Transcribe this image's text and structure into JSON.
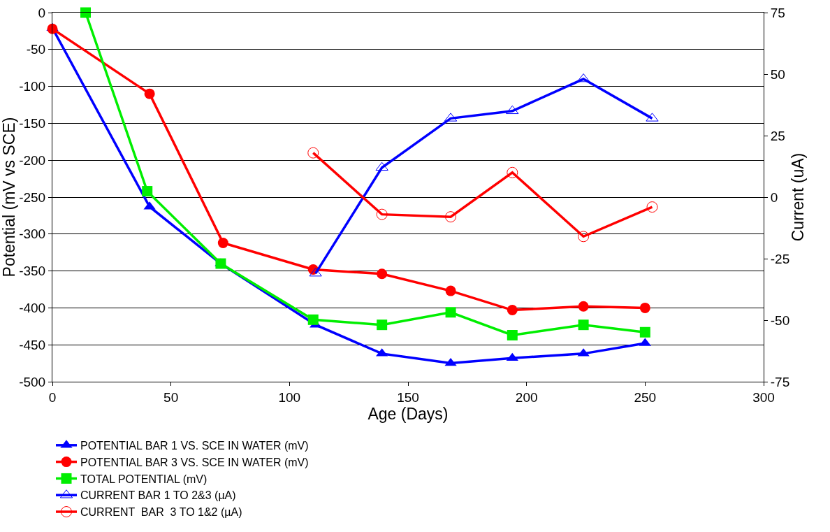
{
  "chart_data": {
    "type": "line",
    "xlabel": "Age (Days)",
    "ylabel": "Potential (mV vs SCE)",
    "y2label": "Current (uA)",
    "xlim": [
      0,
      300
    ],
    "xticks": [
      0,
      50,
      100,
      150,
      200,
      250,
      300
    ],
    "ylim": [
      -500,
      0
    ],
    "yticks": [
      -500,
      -450,
      -400,
      -350,
      -300,
      -250,
      -200,
      -150,
      -100,
      -50,
      0
    ],
    "y2lim": [
      -75,
      75
    ],
    "y2ticks": [
      -75,
      -50,
      -25,
      0,
      25,
      50,
      75
    ],
    "grid": "y",
    "legend": "bottom",
    "series": [
      {
        "name": "POTENTIAL BAR 1 VS. SCE IN WATER (mV)",
        "color": "#0000ff",
        "marker": "triangle",
        "x": [
          0,
          41,
          71,
          111,
          139,
          168,
          194,
          224,
          250
        ],
        "values": [
          -21,
          -263,
          -340,
          -423,
          -462,
          -475,
          -468,
          -462,
          -448
        ]
      },
      {
        "name": "POTENTIAL BAR 3 VS. SCE IN WATER (mV)",
        "color": "#ff0000",
        "marker": "circle",
        "x": [
          0,
          41,
          72,
          110,
          139,
          168,
          194,
          224,
          250
        ],
        "values": [
          -22,
          -110,
          -312,
          -348,
          -354,
          -377,
          -403,
          -398,
          -400
        ]
      },
      {
        "name": "TOTAL POTENTIAL (mV)",
        "color": "#00ee00",
        "marker": "square",
        "x": [
          14,
          40,
          71,
          110,
          139,
          168,
          194,
          224,
          250
        ],
        "values": [
          0,
          -242,
          -340,
          -416,
          -423,
          -406,
          -437,
          -423,
          -433
        ]
      },
      {
        "name": "CURRENT BAR 1 TO 2&3 (µA)",
        "color": "#0000ff",
        "marker": "triangle-open",
        "axis": "y2",
        "x": [
          111,
          139,
          168,
          194,
          224,
          253
        ],
        "values": [
          -31,
          12,
          32,
          35,
          48,
          32
        ]
      },
      {
        "name": "CURRENT  BAR  3 TO 1&2 (µA)",
        "color": "#ff0000",
        "marker": "circle-open",
        "axis": "y2",
        "x": [
          110,
          139,
          168,
          194,
          224,
          253
        ],
        "values": [
          18,
          -7,
          -8,
          10,
          -16,
          -4
        ]
      }
    ]
  }
}
